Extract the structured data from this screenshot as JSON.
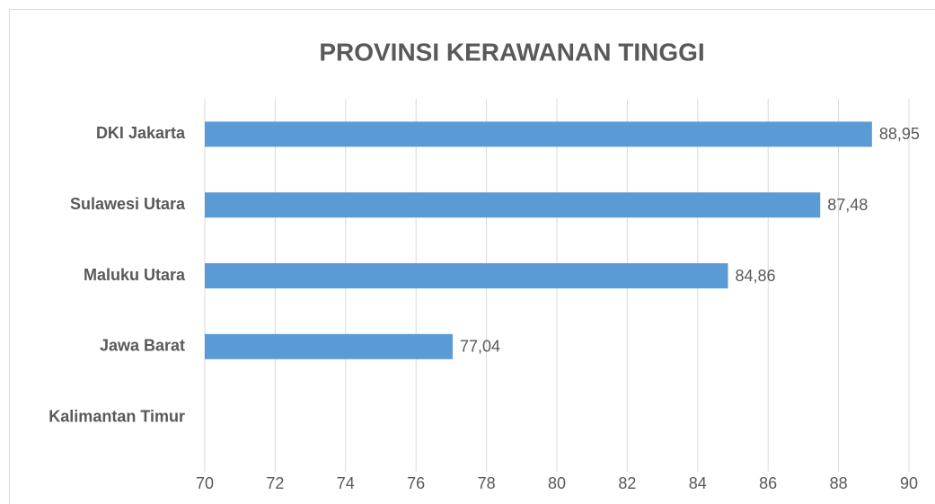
{
  "chart_data": {
    "type": "bar",
    "orientation": "horizontal",
    "title": "PROVINSI KERAWANAN TINGGI",
    "categories": [
      "DKI Jakarta",
      "Sulawesi Utara",
      "Maluku Utara",
      "Jawa Barat",
      "Kalimantan Timur"
    ],
    "values": [
      88.95,
      87.48,
      84.86,
      77.04,
      null
    ],
    "value_labels": [
      "88,95",
      "87,48",
      "84,86",
      "77,04",
      null
    ],
    "color": "#5b9bd5",
    "xlim": [
      70,
      90
    ],
    "xticks": [
      70,
      72,
      74,
      76,
      78,
      80,
      82,
      84,
      86,
      88,
      90
    ],
    "grid": true
  }
}
